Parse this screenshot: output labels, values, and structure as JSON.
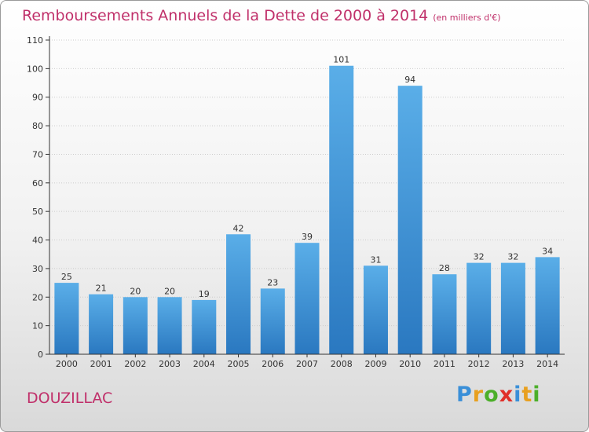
{
  "title": "Remboursements Annuels de la Dette de 2000 à 2014",
  "unit": "(en milliers d'€)",
  "commune": "DOUZILLAC",
  "logo": {
    "letters": [
      {
        "char": "P",
        "color": "#3a8fd8"
      },
      {
        "char": "r",
        "color": "#e8a020"
      },
      {
        "char": "o",
        "color": "#4caf2a"
      },
      {
        "char": "x",
        "color": "#e0302a"
      },
      {
        "char": "i",
        "color": "#3a8fd8"
      },
      {
        "char": "t",
        "color": "#e8a020"
      },
      {
        "char": "i",
        "color": "#4caf2a"
      }
    ]
  },
  "colors": {
    "bar_top": "#5aaee8",
    "bar_bottom": "#2a78c0",
    "axis": "#333333",
    "grid": "#cccccc",
    "text": "#333333"
  },
  "chart_data": {
    "type": "bar",
    "title": "Remboursements Annuels de la Dette de 2000 à 2014",
    "categories": [
      "2000",
      "2001",
      "2002",
      "2003",
      "2004",
      "2005",
      "2006",
      "2007",
      "2008",
      "2009",
      "2010",
      "2011",
      "2012",
      "2013",
      "2014"
    ],
    "values": [
      25,
      21,
      20,
      20,
      19,
      42,
      23,
      39,
      101,
      31,
      94,
      28,
      32,
      32,
      34
    ],
    "ylim": [
      0,
      110
    ],
    "yticks": [
      0,
      10,
      20,
      30,
      40,
      50,
      60,
      70,
      80,
      90,
      100,
      110
    ],
    "grid": true,
    "xlabel": "",
    "ylabel": ""
  }
}
